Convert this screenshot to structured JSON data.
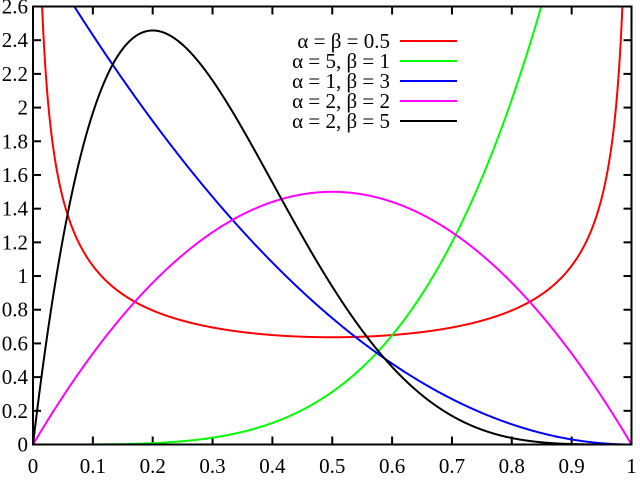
{
  "figure": {
    "background": "#ffffff",
    "frame_color": "#000000"
  },
  "chart_data": {
    "type": "line",
    "title": "",
    "xlabel": "",
    "ylabel": "",
    "xlim": [
      0,
      1
    ],
    "ylim": [
      0,
      2.6
    ],
    "grid": false,
    "legend_position": "top-center-right-inside",
    "x_tick_values": [
      0,
      0.1,
      0.2,
      0.3,
      0.4,
      0.5,
      0.6,
      0.7,
      0.8,
      0.9,
      1
    ],
    "x_tick_labels": [
      "0",
      "0.1",
      "0.2",
      "0.3",
      "0.4",
      "0.5",
      "0.6",
      "0.7",
      "0.8",
      "0.9",
      "1"
    ],
    "y_tick_values": [
      0,
      0.2,
      0.4,
      0.6,
      0.8,
      1,
      1.2,
      1.4,
      1.6,
      1.8,
      2,
      2.2,
      2.4,
      2.6
    ],
    "y_tick_labels": [
      "0",
      "0.2",
      "0.4",
      "0.6",
      "0.8",
      "1",
      "1.2",
      "1.4",
      "1.6",
      "1.8",
      "2",
      "2.2",
      "2.4",
      "2.6"
    ],
    "curve_formula": "pdf(x) = coef * x^(alpha-1) * (1-x)^(beta-1)",
    "series": [
      {
        "label": "α = β = 0.5",
        "alpha": 0.5,
        "beta": 0.5,
        "coef": 0.3183098861837907,
        "color": "#ff0000"
      },
      {
        "label": "α = 5, β = 1",
        "alpha": 5,
        "beta": 1,
        "coef": 5,
        "color": "#00ff00"
      },
      {
        "label": "α = 1, β = 3",
        "alpha": 1,
        "beta": 3,
        "coef": 3,
        "color": "#0000ff"
      },
      {
        "label": "α = 2, β = 2",
        "alpha": 2,
        "beta": 2,
        "coef": 6,
        "color": "#ff00ff"
      },
      {
        "label": "α = 2, β = 5",
        "alpha": 2,
        "beta": 5,
        "coef": 30,
        "color": "#000000"
      }
    ]
  }
}
